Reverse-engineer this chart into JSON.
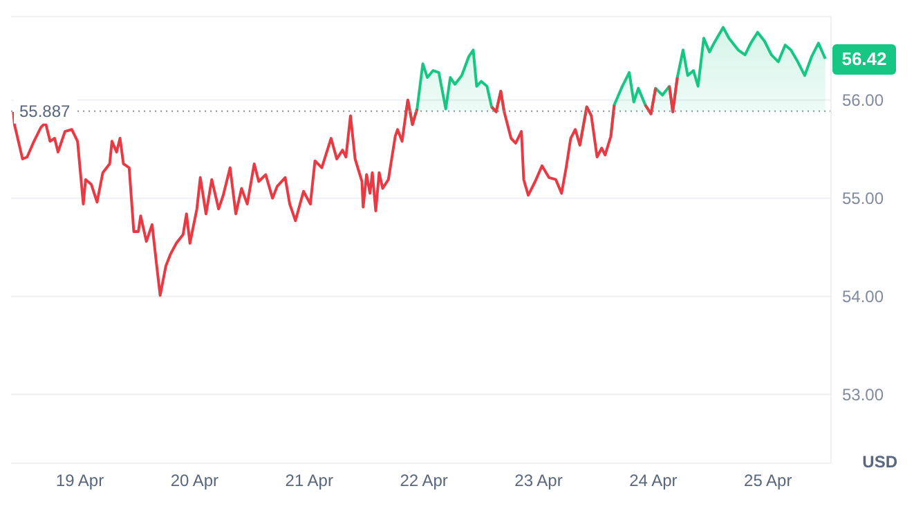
{
  "chart_data": {
    "type": "area",
    "ylabel": "USD",
    "x": [
      "--04-18T10:05",
      "--04-18T10:19",
      "--04-18T12:00",
      "--04-18T12:58",
      "--04-18T14:24",
      "--04-18T15:50",
      "--04-18T16:48",
      "--04-18T17:46",
      "--04-18T18:43",
      "--04-18T19:26",
      "--04-18T20:53",
      "--04-18T22:19",
      "--04-18T23:31",
      "--04-19T00:43",
      "--04-19T01:12",
      "--04-19T02:24",
      "--04-19T03:36",
      "--04-19T04:48",
      "--04-19T06:14",
      "--04-19T06:43",
      "--04-19T07:41",
      "--04-19T08:24",
      "--04-19T09:07",
      "--04-19T10:19",
      "--04-19T11:17",
      "--04-19T12:14",
      "--04-19T12:43",
      "--04-19T13:55",
      "--04-19T15:07",
      "--04-19T16:05",
      "--04-19T16:48",
      "--04-19T18:00",
      "--04-19T18:58",
      "--04-19T20:10",
      "--04-19T21:36",
      "--04-19T22:19",
      "--04-19T23:02",
      "--04-20T00:29",
      "--04-20T01:12",
      "--04-20T02:24",
      "--04-20T03:36",
      "--04-20T05:02",
      "--04-20T06:00",
      "--04-20T07:26",
      "--04-20T08:38",
      "--04-20T09:50",
      "--04-20T11:02",
      "--04-20T12:29",
      "--04-20T13:26",
      "--04-20T14:53",
      "--04-20T16:19",
      "--04-20T17:17",
      "--04-20T18:58",
      "--04-20T19:55",
      "--04-20T21:07",
      "--04-20T22:48",
      "--04-21T00:14",
      "--04-21T01:12",
      "--04-21T02:38",
      "--04-21T04:34",
      "--04-21T05:46",
      "--04-21T06:58",
      "--04-21T07:41",
      "--04-21T08:38",
      "--04-21T09:36",
      "--04-21T11:02",
      "--04-21T11:17",
      "--04-21T12:00",
      "--04-21T12:43",
      "--04-21T13:12",
      "--04-21T13:55",
      "--04-21T14:38",
      "--04-21T15:22",
      "--04-21T16:34",
      "--04-21T18:00",
      "--04-21T18:29",
      "--04-21T19:26",
      "--04-21T20:10",
      "--04-21T20:38",
      "--04-21T21:36",
      "--04-21T22:34",
      "--04-21T23:46",
      "--04-22T00:43",
      "--04-22T01:55",
      "--04-22T03:07",
      "--04-22T04:34",
      "--04-22T05:31",
      "--04-22T06:29",
      "--04-22T07:55",
      "--04-22T09:22",
      "--04-22T10:19",
      "--04-22T11:02",
      "--04-22T12:00",
      "--04-22T13:12",
      "--04-22T14:10",
      "--04-22T15:07",
      "--04-22T16:05",
      "--04-22T16:48",
      "--04-22T18:14",
      "--04-22T19:12",
      "--04-22T20:24",
      "--04-22T20:53",
      "--04-22T21:50",
      "--04-22T23:17",
      "--04-23T00:43",
      "--04-23T02:10",
      "--04-23T03:36",
      "--04-23T04:48",
      "--04-23T05:46",
      "--04-23T06:43",
      "--04-23T07:41",
      "--04-23T08:38",
      "--04-23T10:05",
      "--04-23T11:02",
      "--04-23T12:14",
      "--04-23T13:12",
      "--04-23T13:55",
      "--04-23T15:07",
      "--04-23T15:50",
      "--04-23T17:31",
      "--04-23T18:58",
      "--04-23T19:55",
      "--04-23T20:53",
      "--04-23T22:19",
      "--04-23T23:31",
      "--04-24T00:29",
      "--04-24T01:55",
      "--04-24T03:22",
      "--04-24T04:05",
      "--04-24T05:02",
      "--04-24T06:14",
      "--04-24T07:12",
      "--04-24T08:24",
      "--04-24T09:22",
      "--04-24T10:34",
      "--04-24T11:46",
      "--04-24T12:43",
      "--04-24T14:38",
      "--04-24T15:50",
      "--04-24T17:46",
      "--04-24T19:12",
      "--04-24T20:24",
      "--04-24T21:50",
      "--04-24T23:17",
      "--04-25T00:43",
      "--04-25T02:10",
      "--04-25T03:36",
      "--04-25T04:48",
      "--04-25T06:14",
      "--04-25T07:41",
      "--04-25T09:07",
      "--04-25T10:34",
      "--04-25T12:00"
    ],
    "series": [
      {
        "color": "#16c784",
        "values": [
          null,
          null,
          null,
          null,
          null,
          null,
          null,
          null,
          null,
          null,
          null,
          null,
          null,
          null,
          null,
          null,
          null,
          null,
          null,
          null,
          null,
          null,
          null,
          null,
          null,
          null,
          null,
          null,
          null,
          null,
          null,
          null,
          null,
          null,
          null,
          null,
          null,
          null,
          null,
          null,
          null,
          null,
          null,
          null,
          null,
          null,
          null,
          null,
          null,
          null,
          null,
          null,
          null,
          null,
          null,
          null,
          null,
          null,
          null,
          null,
          null,
          null,
          null,
          null,
          null,
          null,
          null,
          null,
          null,
          null,
          null,
          null,
          null,
          null,
          null,
          null,
          null,
          55.84,
          56.0,
          55.75,
          55.91,
          56.37,
          56.23,
          56.3,
          56.28,
          55.91,
          56.23,
          56.16,
          56.25,
          56.44,
          56.51,
          56.14,
          56.19,
          56.14,
          55.93,
          55.88,
          56.09,
          55.88,
          null,
          null,
          null,
          null,
          null,
          null,
          null,
          null,
          null,
          null,
          null,
          null,
          null,
          55.54,
          55.93,
          55.84,
          null,
          null,
          null,
          55.63,
          55.95,
          56.14,
          56.28,
          55.98,
          56.12,
          55.95,
          55.86,
          56.12,
          56.05,
          56.14,
          55.88,
          56.23,
          56.51,
          56.25,
          56.3,
          56.14,
          56.63,
          56.49,
          56.58,
          56.74,
          56.63,
          56.51,
          56.46,
          56.58,
          56.69,
          56.6,
          56.46,
          56.39,
          56.56,
          56.51,
          56.39,
          56.25,
          56.44,
          56.58,
          56.42
        ]
      },
      {
        "type": "line",
        "color": "#ea3943",
        "values": [
          55.88,
          55.75,
          55.4,
          55.42,
          55.58,
          55.72,
          55.77,
          55.58,
          55.61,
          55.47,
          55.68,
          55.7,
          55.58,
          54.94,
          55.19,
          55.14,
          54.96,
          55.26,
          55.35,
          55.58,
          55.47,
          55.61,
          55.35,
          55.31,
          54.66,
          54.66,
          54.82,
          54.56,
          54.73,
          54.31,
          54.01,
          54.31,
          54.43,
          54.54,
          54.63,
          54.84,
          54.54,
          54.89,
          55.21,
          54.84,
          55.19,
          54.89,
          55.03,
          55.31,
          54.84,
          55.1,
          54.94,
          55.35,
          55.17,
          55.24,
          55.0,
          55.12,
          55.21,
          54.94,
          54.77,
          55.07,
          54.94,
          55.38,
          55.31,
          55.61,
          55.4,
          55.49,
          55.42,
          55.84,
          55.4,
          55.17,
          54.91,
          55.24,
          55.05,
          55.26,
          54.87,
          55.26,
          55.1,
          55.19,
          55.63,
          55.7,
          55.58,
          55.84,
          56.0,
          55.75,
          55.91,
          null,
          null,
          null,
          null,
          null,
          null,
          null,
          null,
          null,
          null,
          null,
          null,
          null,
          55.93,
          55.88,
          56.09,
          55.88,
          55.61,
          55.56,
          55.68,
          55.19,
          55.03,
          55.17,
          55.33,
          55.21,
          55.19,
          55.05,
          55.31,
          55.61,
          55.7,
          55.54,
          55.93,
          55.84,
          55.42,
          55.51,
          55.44,
          55.63,
          55.95,
          null,
          null,
          null,
          null,
          55.95,
          55.86,
          56.12,
          null,
          56.14,
          55.88,
          56.23,
          null,
          null,
          null,
          null,
          null,
          null,
          null,
          null,
          null,
          null,
          null,
          null,
          null,
          null,
          null,
          null,
          null,
          null,
          null,
          null,
          null,
          null,
          null
        ]
      }
    ],
    "xlim": [
      "--04-18T09:36",
      "--04-25T13:12"
    ],
    "xticks": [
      {
        "value": "--04-19",
        "label": "19 Apr"
      },
      {
        "value": "--04-20",
        "label": "20 Apr"
      },
      {
        "value": "--04-21",
        "label": "21 Apr"
      },
      {
        "value": "--04-22",
        "label": "22 Apr"
      },
      {
        "value": "--04-23",
        "label": "23 Apr"
      },
      {
        "value": "--04-24",
        "label": "24 Apr"
      },
      {
        "value": "--04-25",
        "label": "25 Apr"
      }
    ],
    "ylim": [
      52.3,
      56.85
    ],
    "yticks": [
      {
        "value": 53,
        "label": "53.00"
      },
      {
        "value": 54,
        "label": "54.00"
      },
      {
        "value": 55,
        "label": "55.00"
      },
      {
        "value": 56,
        "label": "56.00"
      }
    ],
    "ref_lines": [
      {
        "axis": "y",
        "value": 55.887,
        "label": "55.887",
        "color": "#8c94a3",
        "line_style": "dotted"
      }
    ],
    "annotations": [
      "56.42"
    ],
    "grid": "y",
    "marker": "none"
  }
}
